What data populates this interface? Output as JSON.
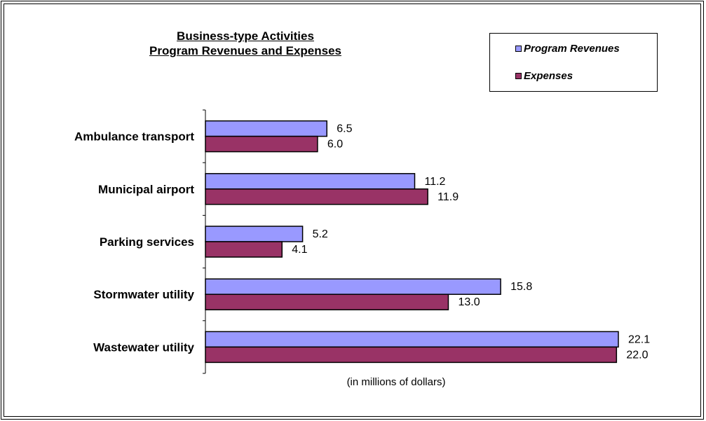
{
  "chart_data": {
    "type": "bar",
    "orientation": "horizontal",
    "title_lines": [
      "Business-type  Activities",
      "Program Revenues  and Expenses"
    ],
    "xlabel": "(in millions of dollars)",
    "ylabel": "",
    "categories": [
      "Ambulance transport",
      "Municipal airport",
      "Parking services",
      "Stormwater utility",
      "Wastewater utility"
    ],
    "series": [
      {
        "name": "Program Revenues",
        "color": "#9999ff",
        "values": [
          6.5,
          11.2,
          5.2,
          15.8,
          22.1
        ],
        "labels": [
          "6.5",
          "11.2",
          "5.2",
          "15.8",
          "22.1"
        ]
      },
      {
        "name": "Expenses",
        "color": "#993366",
        "values": [
          6.0,
          11.9,
          4.1,
          13.0,
          22.0
        ],
        "labels": [
          "6.0",
          "11.9",
          "4.1",
          "13.0",
          "22.0"
        ]
      }
    ],
    "xlim": [
      0,
      22.1
    ],
    "grid": false,
    "legend_position": "top-right"
  }
}
